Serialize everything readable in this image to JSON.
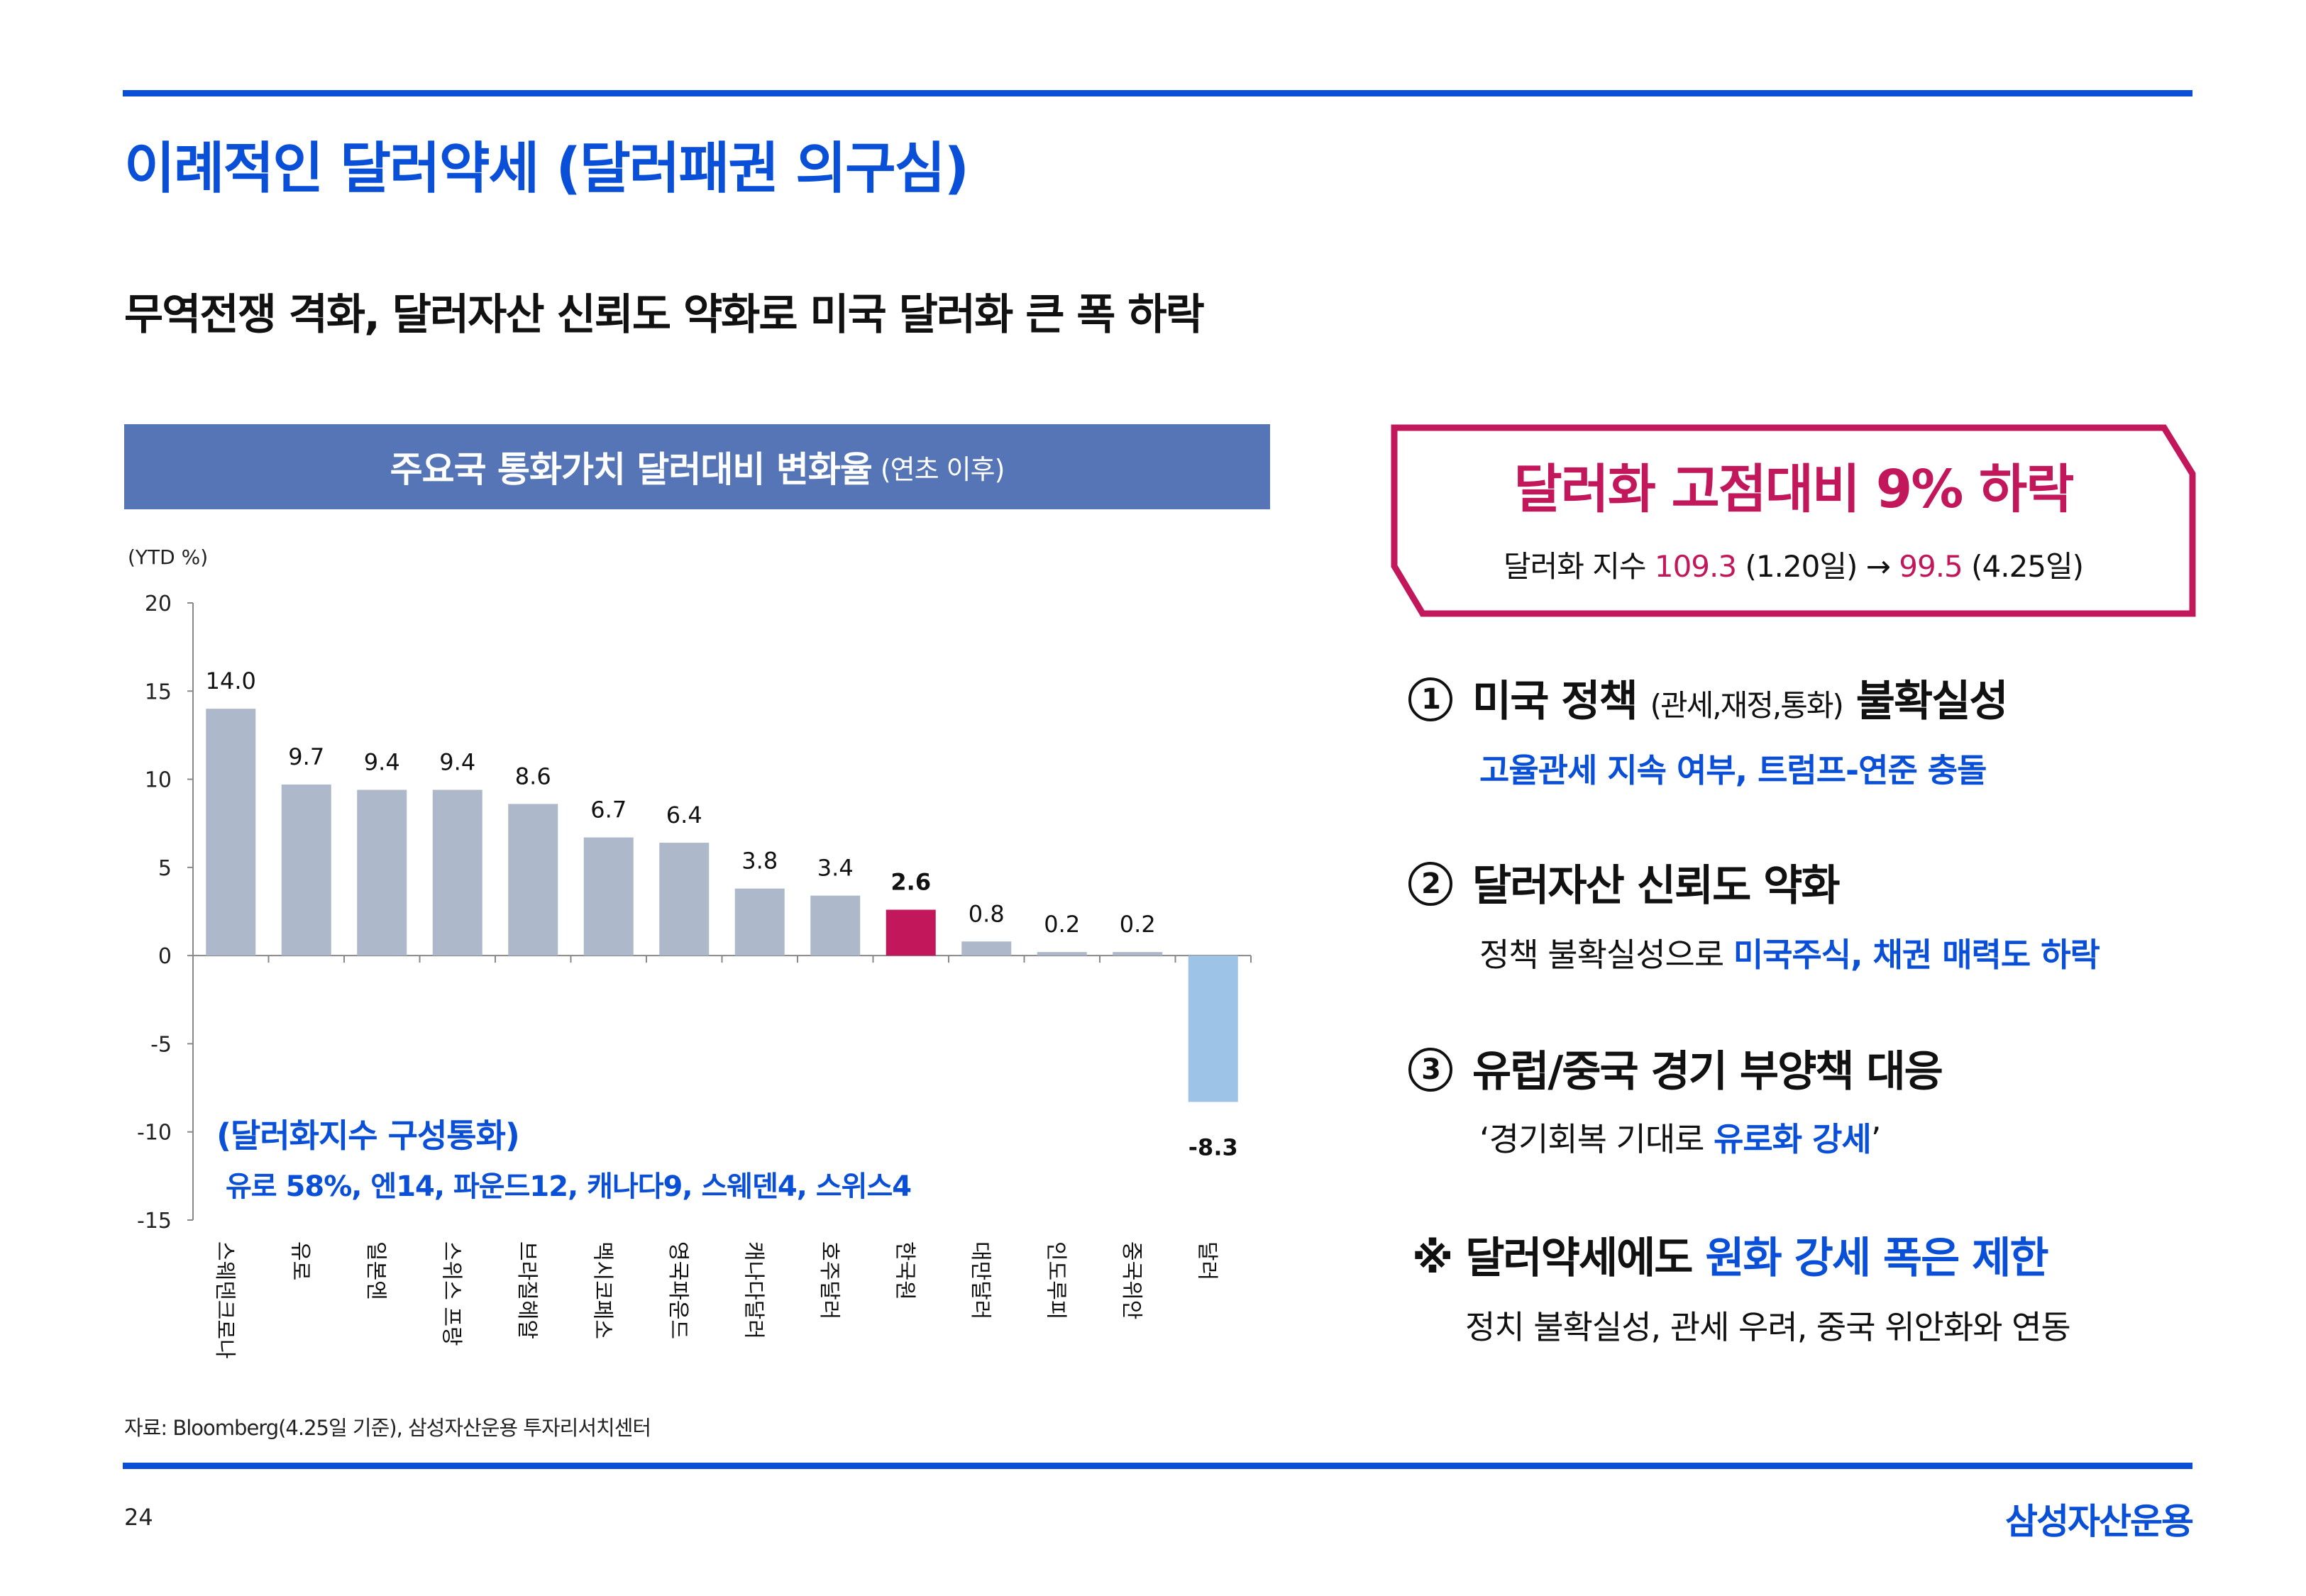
{
  "header": {
    "title": "이례적인 달러약세 (달러패권 의구심)",
    "subtitle": "무역전쟁 격화, 달러자산 신뢰도 약화로 미국 달러화 큰 폭 하락"
  },
  "chart_header": {
    "title": "주요국 통화가치 달러대비 변화율",
    "title_small": "(연초 이후)"
  },
  "chart_data": {
    "type": "bar",
    "title": "주요국 통화가치 달러대비 변화율 (연초 이후)",
    "ylabel": "(YTD %)",
    "xlabel": "",
    "ylim": [
      -15,
      20
    ],
    "yticks": [
      20,
      15,
      10,
      5,
      0,
      -5,
      -10,
      -15
    ],
    "grid": false,
    "categories": [
      "스웨덴크로나",
      "유로",
      "일본엔",
      "스위스 프랑",
      "브라질헤알",
      "멕시코페소",
      "영국파운드",
      "캐나다달러",
      "호주달러",
      "한국원",
      "대만달러",
      "인도루피",
      "중국위안",
      "달러"
    ],
    "values": [
      14.0,
      9.7,
      9.4,
      9.4,
      8.6,
      6.7,
      6.4,
      3.8,
      3.4,
      2.6,
      0.8,
      0.2,
      0.2,
      -8.3
    ],
    "value_labels": [
      "14.0",
      "9.7",
      "9.4",
      "9.4",
      "8.6",
      "6.7",
      "6.4",
      "3.8",
      "3.4",
      "2.6",
      "0.8",
      "0.2",
      "0.2",
      "-8.3"
    ],
    "highlights": {
      "한국원": "#c2185b",
      "달러": "#9dc3e6"
    },
    "default_color": "#adb9ca",
    "annotations": [
      "(달러화지수 구성통화)",
      "유로 58%, 엔14, 파운드12, 캐나다9, 스웨덴4, 스위스4"
    ]
  },
  "callout": {
    "title": "달러화 고점대비 9% 하락",
    "sub_prefix": "달러화 지수 ",
    "value_from": "109.3",
    "date_from": " (1.20일) → ",
    "value_to": "99.5",
    "date_to": " (4.25일)"
  },
  "points": [
    {
      "num": "1",
      "head_a": "미국 정책 ",
      "head_small": "(관세,재정,통화)",
      "head_b": " 불확실성",
      "sub_plain": "",
      "sub_blue": "고율관세 지속 여부, 트럼프-연준 충돌"
    },
    {
      "num": "2",
      "head_a": "달러자산 신뢰도 약화",
      "head_small": "",
      "head_b": "",
      "sub_plain": "정책 불확실성으로 ",
      "sub_blue": "미국주식, 채권 매력도 하락"
    },
    {
      "num": "3",
      "head_a": "유럽/중국 경기 부양책 대응",
      "head_small": "",
      "head_b": "",
      "sub_plain": "‘경기회복 기대로 ",
      "sub_blue": "유로화 강세",
      "sub_end": "’"
    }
  ],
  "note": {
    "mark": "※",
    "head_plain": " 달러약세에도 ",
    "head_blue": "원화 강세 폭은 제한",
    "sub": "정치 불확실성, 관세 우려, 중국 위안화와 연동"
  },
  "footer": {
    "source": "자료: Bloomberg(4.25일 기준), 삼성자산운용 투자리서치센터",
    "page_number": "24",
    "brand": "삼성자산운용"
  },
  "colors": {
    "accent_blue": "#0a4fd8",
    "header_bar": "#5575b6",
    "highlight_pink": "#c2185b",
    "bar_gray": "#adb9ca",
    "bar_light_blue": "#9dc3e6"
  }
}
